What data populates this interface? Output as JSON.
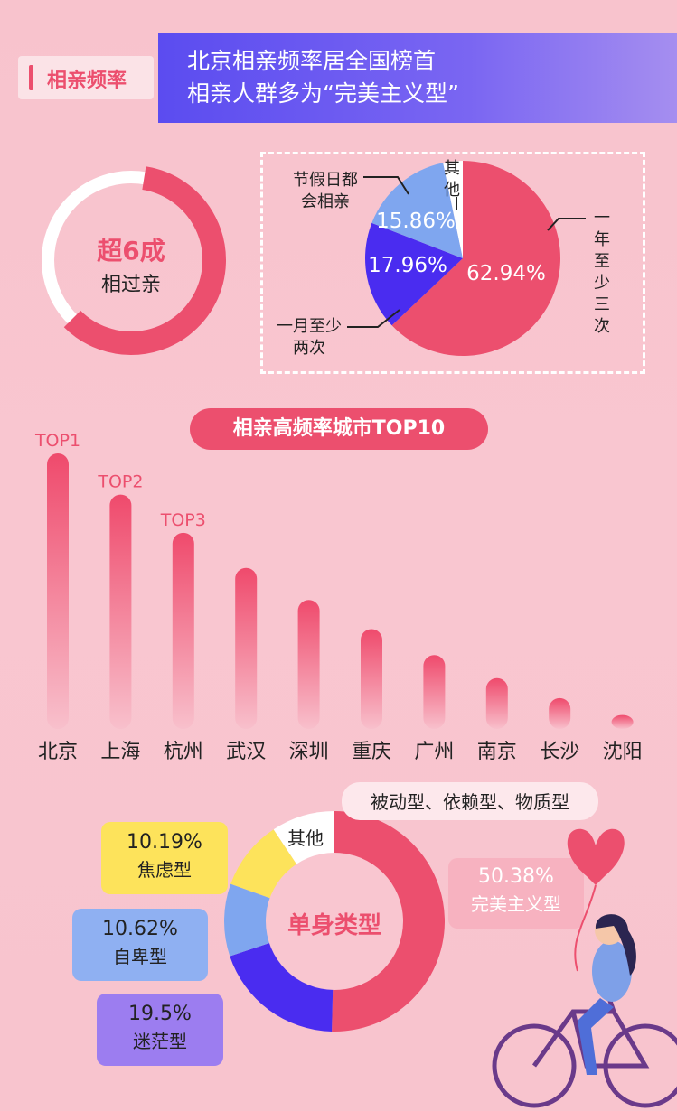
{
  "header": {
    "tag": "相亲频率",
    "line1": "北京相亲频率居全国榜首",
    "line2": "相亲人群多为“完美主义型”"
  },
  "ring": {
    "main_text": "超6成",
    "sub_text": "相过亲",
    "fill_fraction": 0.6
  },
  "chart_data": [
    {
      "type": "pie",
      "slices": [
        {
          "label": "一年至少三次",
          "value": 62.94,
          "value_text": "62.94%",
          "color": "#ec4f6e"
        },
        {
          "label": "一月至少两次",
          "value": 17.96,
          "value_text": "17.96%",
          "color": "#4a2cf0"
        },
        {
          "label": "节假日都会相亲",
          "value": 15.86,
          "value_text": "15.86%",
          "color": "#7fa6ef"
        },
        {
          "label": "其他",
          "value": 3.24,
          "value_text": "",
          "color": "#ffffff"
        }
      ]
    },
    {
      "type": "bar",
      "title": "相亲高频率城市TOP10",
      "categories": [
        "北京",
        "上海",
        "杭州",
        "武汉",
        "深圳",
        "重庆",
        "广州",
        "南京",
        "长沙",
        "沈阳"
      ],
      "values": [
        10,
        9,
        8,
        7,
        6,
        5,
        4,
        3,
        2,
        1
      ],
      "rank_labels": [
        "TOP1",
        "TOP2",
        "TOP3",
        "",
        "",
        "",
        "",
        "",
        "",
        ""
      ]
    },
    {
      "type": "pie",
      "center_label": "单身类型",
      "slices": [
        {
          "name": "完美主义型",
          "value": 50.38,
          "value_text": "50.38%",
          "color": "#ec4f6e"
        },
        {
          "name": "迷茫型",
          "value": 19.5,
          "value_text": "19.5%",
          "color": "#4a2cf0"
        },
        {
          "name": "自卑型",
          "value": 10.62,
          "value_text": "10.62%",
          "color": "#7fa6ef"
        },
        {
          "name": "焦虑型",
          "value": 10.19,
          "value_text": "10.19%",
          "color": "#fde35b"
        },
        {
          "name": "其他",
          "value": 9.31,
          "value_text": "",
          "color": "#ffffff"
        }
      ],
      "other_note": "被动型、依赖型、物质型"
    }
  ],
  "colors": {
    "accent": "#ec4f6e",
    "purple": "#4a2cf0",
    "blue": "#7fa6ef",
    "yellow": "#fde35b"
  }
}
